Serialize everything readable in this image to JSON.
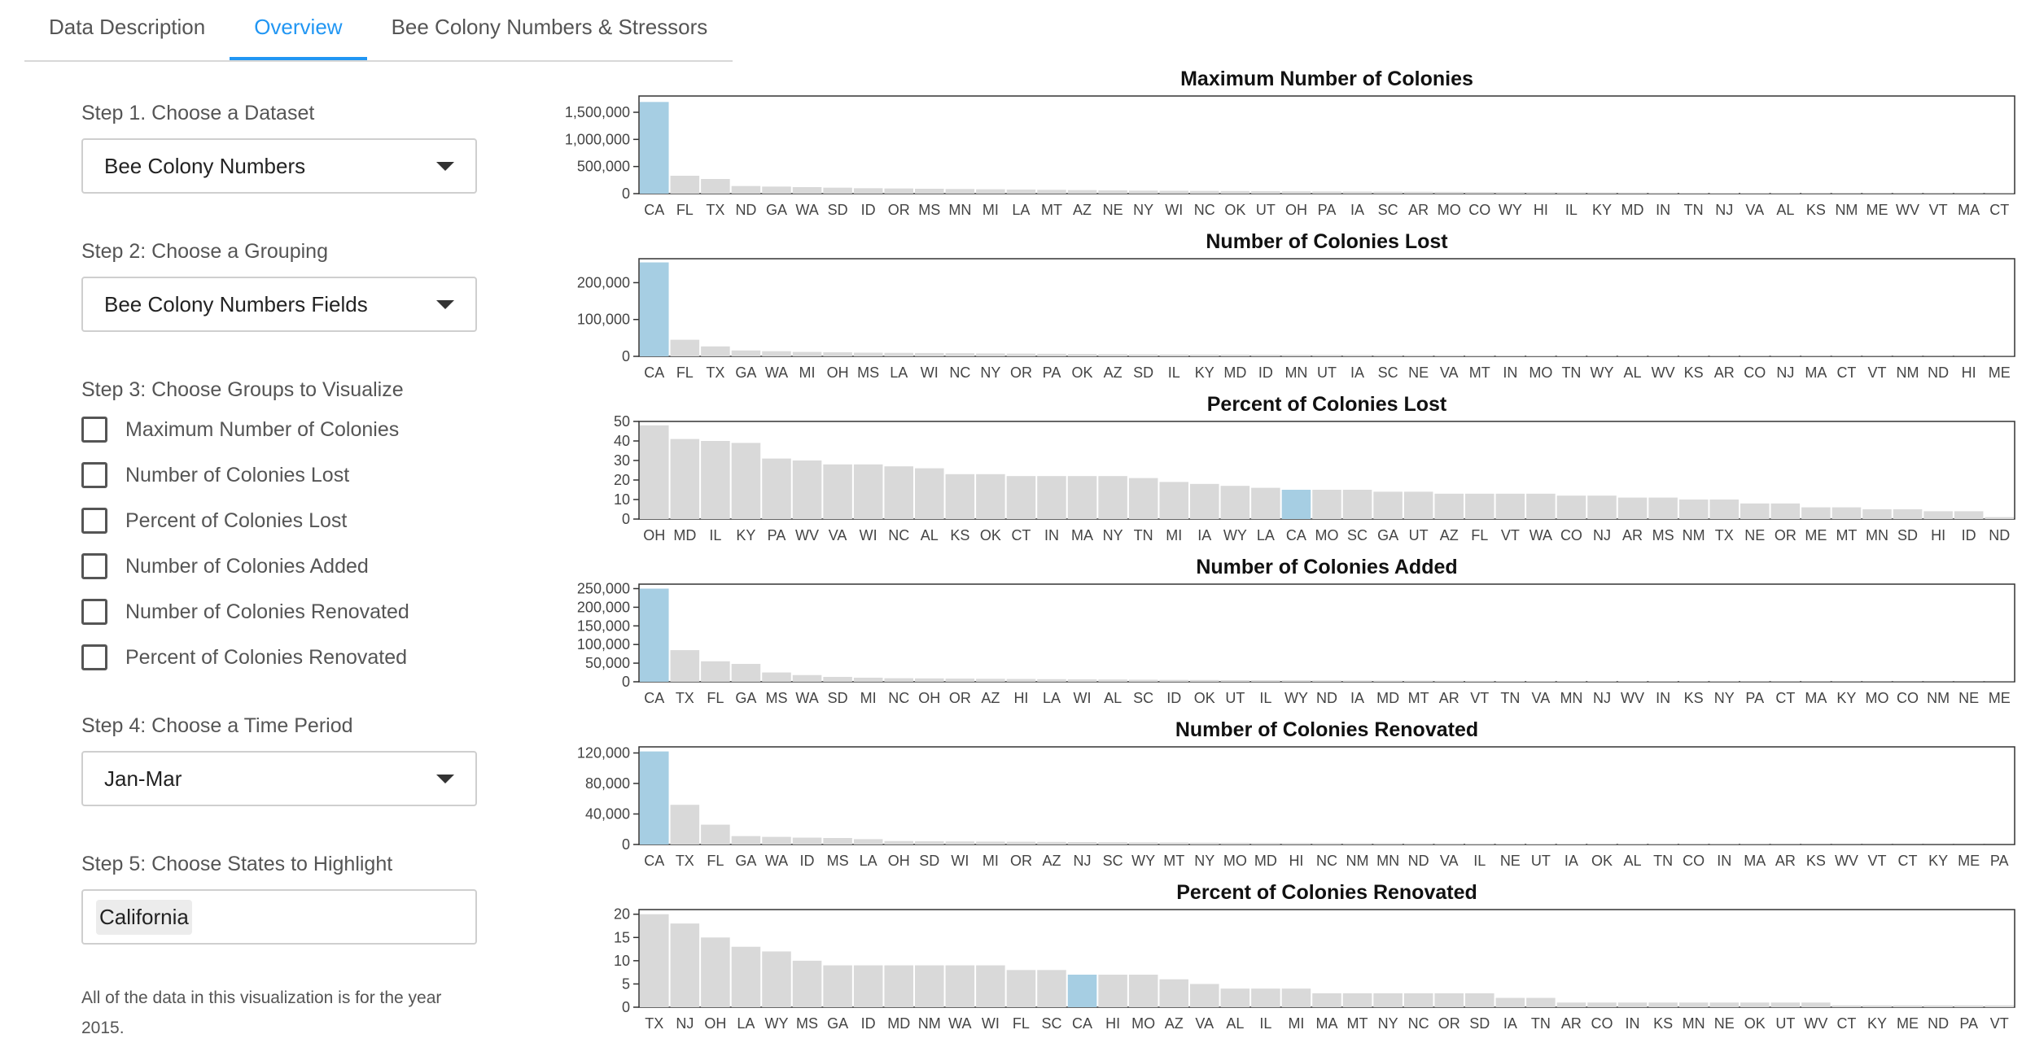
{
  "tabs": [
    {
      "label": "Data Description"
    },
    {
      "label": "Overview"
    },
    {
      "label": "Bee Colony Numbers & Stressors"
    }
  ],
  "sidebar": {
    "step1": {
      "label": "Step 1. Choose a Dataset",
      "value": "Bee Colony Numbers"
    },
    "step2": {
      "label": "Step 2: Choose a Grouping",
      "value": "Bee Colony Numbers Fields"
    },
    "step3": {
      "label": "Step 3: Choose Groups to Visualize",
      "options": [
        "Maximum Number of Colonies",
        "Number of Colonies Lost",
        "Percent of Colonies Lost",
        "Number of Colonies Added",
        "Number of Colonies Renovated",
        "Percent of Colonies Renovated"
      ]
    },
    "step4": {
      "label": "Step 4: Choose a Time Period",
      "value": "Jan-Mar"
    },
    "step5": {
      "label": "Step 5: Choose States to Highlight",
      "tag": "California"
    }
  },
  "note": "All of the data in this visualization is for the year 2015.",
  "colors": {
    "highlight": "#a6cee3",
    "bar": "#d9d9d9",
    "accent": "#2196f3"
  },
  "chart_data": [
    {
      "type": "bar",
      "title": "Maximum Number of Colonies",
      "highlight": "CA",
      "categories": [
        "CA",
        "FL",
        "TX",
        "ND",
        "GA",
        "WA",
        "SD",
        "ID",
        "OR",
        "MS",
        "MN",
        "MI",
        "LA",
        "MT",
        "AZ",
        "NE",
        "NY",
        "WI",
        "NC",
        "OK",
        "UT",
        "OH",
        "PA",
        "IA",
        "SC",
        "AR",
        "MO",
        "CO",
        "WY",
        "HI",
        "IL",
        "KY",
        "MD",
        "IN",
        "TN",
        "NJ",
        "VA",
        "AL",
        "KS",
        "NM",
        "ME",
        "WV",
        "VT",
        "MA",
        "CT"
      ],
      "values": [
        1690000,
        330000,
        270000,
        140000,
        130000,
        120000,
        110000,
        100000,
        95000,
        90000,
        85000,
        80000,
        75000,
        70000,
        65000,
        60000,
        55000,
        52000,
        50000,
        48000,
        45000,
        42000,
        40000,
        38000,
        36000,
        34000,
        32000,
        30000,
        28000,
        26000,
        24000,
        22000,
        20000,
        18000,
        16000,
        15000,
        14000,
        13000,
        12000,
        11000,
        10000,
        9000,
        8000,
        7000,
        6000
      ],
      "ylim": [
        0,
        1800000
      ],
      "yticks": [
        0,
        500000,
        1000000,
        1500000
      ],
      "yticklabels": [
        "0",
        "500,000",
        "1,000,000",
        "1,500,000"
      ]
    },
    {
      "type": "bar",
      "title": "Number of Colonies Lost",
      "highlight": "CA",
      "categories": [
        "CA",
        "FL",
        "TX",
        "GA",
        "WA",
        "MI",
        "OH",
        "MS",
        "LA",
        "WI",
        "NC",
        "NY",
        "OR",
        "PA",
        "OK",
        "AZ",
        "SD",
        "IL",
        "KY",
        "MD",
        "ID",
        "MN",
        "UT",
        "IA",
        "SC",
        "NE",
        "VA",
        "MT",
        "IN",
        "MO",
        "TN",
        "WY",
        "AL",
        "WV",
        "KS",
        "AR",
        "CO",
        "NJ",
        "MA",
        "CT",
        "VT",
        "NM",
        "ND",
        "HI",
        "ME"
      ],
      "values": [
        255000,
        45000,
        27000,
        16000,
        14000,
        12000,
        11000,
        10000,
        9500,
        9000,
        8500,
        8000,
        7500,
        7000,
        6500,
        6000,
        5500,
        5200,
        5000,
        4800,
        4500,
        4200,
        4000,
        3800,
        3500,
        3200,
        3000,
        2800,
        2600,
        2400,
        2200,
        2000,
        1900,
        1800,
        1600,
        1500,
        1400,
        1300,
        1200,
        1100,
        1000,
        900,
        800,
        700,
        600
      ],
      "ylim": [
        0,
        265000
      ],
      "yticks": [
        0,
        100000,
        200000
      ],
      "yticklabels": [
        "0",
        "100,000",
        "200,000"
      ]
    },
    {
      "type": "bar",
      "title": "Percent of Colonies Lost",
      "highlight": "CA",
      "categories": [
        "OH",
        "MD",
        "IL",
        "KY",
        "PA",
        "WV",
        "VA",
        "WI",
        "NC",
        "AL",
        "KS",
        "OK",
        "CT",
        "IN",
        "MA",
        "NY",
        "TN",
        "MI",
        "IA",
        "WY",
        "LA",
        "CA",
        "MO",
        "SC",
        "GA",
        "UT",
        "AZ",
        "FL",
        "VT",
        "WA",
        "CO",
        "NJ",
        "AR",
        "MS",
        "NM",
        "TX",
        "NE",
        "OR",
        "ME",
        "MT",
        "MN",
        "SD",
        "HI",
        "ID",
        "ND"
      ],
      "values": [
        48,
        41,
        40,
        39,
        31,
        30,
        28,
        28,
        27,
        26,
        23,
        23,
        22,
        22,
        22,
        22,
        21,
        19,
        18,
        17,
        16,
        15,
        15,
        15,
        14,
        14,
        13,
        13,
        13,
        13,
        12,
        12,
        11,
        11,
        10,
        10,
        8,
        8,
        6,
        6,
        5,
        5,
        4,
        4,
        1
      ],
      "ylim": [
        0,
        50
      ],
      "yticks": [
        0,
        10,
        20,
        30,
        40,
        50
      ],
      "yticklabels": [
        "0",
        "10",
        "20",
        "30",
        "40",
        "50"
      ]
    },
    {
      "type": "bar",
      "title": "Number of Colonies Added",
      "highlight": "CA",
      "categories": [
        "CA",
        "TX",
        "FL",
        "GA",
        "MS",
        "WA",
        "SD",
        "MI",
        "NC",
        "OH",
        "OR",
        "AZ",
        "HI",
        "LA",
        "WI",
        "AL",
        "SC",
        "ID",
        "OK",
        "UT",
        "IL",
        "WY",
        "ND",
        "IA",
        "MD",
        "MT",
        "AR",
        "VT",
        "TN",
        "VA",
        "MN",
        "NJ",
        "WV",
        "IN",
        "KS",
        "NY",
        "PA",
        "CT",
        "MA",
        "KY",
        "MO",
        "CO",
        "NM",
        "NE",
        "ME"
      ],
      "values": [
        250000,
        85000,
        55000,
        48000,
        25000,
        18000,
        13000,
        11000,
        9500,
        9000,
        8500,
        8000,
        7500,
        7000,
        6500,
        6000,
        5500,
        5000,
        4800,
        4500,
        4200,
        4000,
        3800,
        3500,
        3200,
        3000,
        2800,
        2600,
        2400,
        2200,
        2000,
        1900,
        1800,
        1600,
        1500,
        1400,
        1300,
        1200,
        1100,
        1000,
        900,
        800,
        700,
        600,
        500
      ],
      "ylim": [
        0,
        262000
      ],
      "yticks": [
        0,
        50000,
        100000,
        150000,
        200000,
        250000
      ],
      "yticklabels": [
        "0",
        "50,000",
        "100,000",
        "150,000",
        "200,000",
        "250,000"
      ]
    },
    {
      "type": "bar",
      "title": "Number of Colonies Renovated",
      "highlight": "CA",
      "categories": [
        "CA",
        "TX",
        "FL",
        "GA",
        "WA",
        "ID",
        "MS",
        "LA",
        "OH",
        "SD",
        "WI",
        "MI",
        "OR",
        "AZ",
        "NJ",
        "SC",
        "WY",
        "MT",
        "NY",
        "MO",
        "MD",
        "HI",
        "NC",
        "NM",
        "MN",
        "ND",
        "VA",
        "IL",
        "NE",
        "UT",
        "IA",
        "OK",
        "AL",
        "TN",
        "CO",
        "IN",
        "MA",
        "AR",
        "KS",
        "WV",
        "VT",
        "CT",
        "KY",
        "ME",
        "PA"
      ],
      "values": [
        122000,
        52000,
        26000,
        11000,
        10000,
        9000,
        8500,
        7000,
        4500,
        4200,
        4000,
        3800,
        3600,
        3400,
        3200,
        3000,
        2800,
        2600,
        2400,
        2200,
        2000,
        1900,
        1800,
        1700,
        1600,
        1500,
        1400,
        1300,
        1200,
        1100,
        1000,
        900,
        800,
        700,
        600,
        550,
        500,
        450,
        400,
        350,
        300,
        250,
        200,
        150,
        100
      ],
      "ylim": [
        0,
        128000
      ],
      "yticks": [
        0,
        40000,
        80000,
        120000
      ],
      "yticklabels": [
        "0",
        "40,000",
        "80,000",
        "120,000"
      ]
    },
    {
      "type": "bar",
      "title": "Percent of Colonies Renovated",
      "highlight": "CA",
      "categories": [
        "TX",
        "NJ",
        "OH",
        "LA",
        "WY",
        "MS",
        "GA",
        "ID",
        "MD",
        "NM",
        "WA",
        "WI",
        "FL",
        "SC",
        "CA",
        "HI",
        "MO",
        "AZ",
        "VA",
        "AL",
        "IL",
        "MI",
        "MA",
        "MT",
        "NY",
        "NC",
        "OR",
        "SD",
        "IA",
        "TN",
        "AR",
        "CO",
        "IN",
        "KS",
        "MN",
        "NE",
        "OK",
        "UT",
        "WV",
        "CT",
        "KY",
        "ME",
        "ND",
        "PA",
        "VT"
      ],
      "values": [
        20,
        18,
        15,
        13,
        12,
        10,
        9,
        9,
        9,
        9,
        9,
        9,
        8,
        8,
        7,
        7,
        7,
        6,
        5,
        4,
        4,
        4,
        3,
        3,
        3,
        3,
        3,
        3,
        2,
        2,
        1,
        1,
        1,
        1,
        1,
        1,
        1,
        1,
        1,
        0.4,
        0.4,
        0.4,
        0.4,
        0.4,
        0.4
      ],
      "ylim": [
        0,
        21
      ],
      "yticks": [
        0,
        5,
        10,
        15,
        20
      ],
      "yticklabels": [
        "0",
        "5",
        "10",
        "15",
        "20"
      ]
    }
  ]
}
